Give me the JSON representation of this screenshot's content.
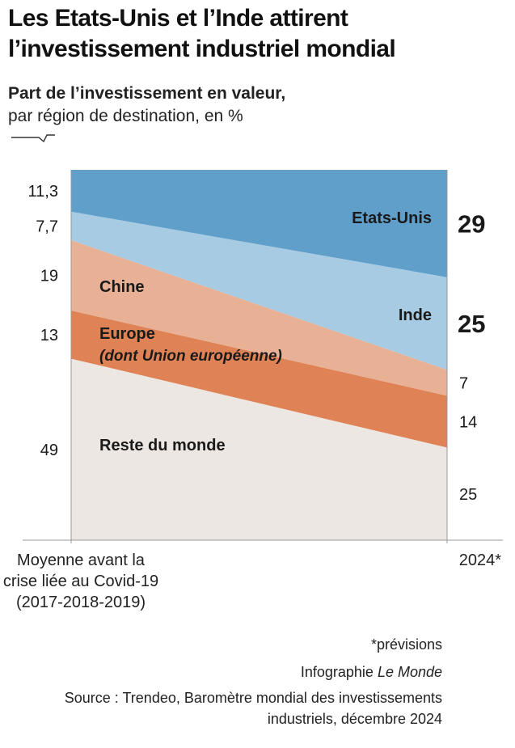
{
  "title": "Les Etats-Unis et l’Inde attirent l’investissement industriel mondial",
  "subtitle_bold": "Part de l’investissement en valeur,",
  "subtitle_regular": "par région de destination, en %",
  "notes": {
    "footnote": "*prévisions",
    "credit_prefix": "Infographie ",
    "credit_source": "Le Monde",
    "source": "Source : Trendeo, Baromètre mondial des investissements industriels, décembre 2024"
  },
  "colors": {
    "etats_unis": "#5f9fca",
    "inde": "#a6cbe2",
    "chine": "#e8b196",
    "europe": "#df8357",
    "reste": "#ece7e2",
    "line": "#9a9a9a",
    "text": "#1a1a1a"
  },
  "chart_data": {
    "type": "area",
    "stacked": true,
    "categories": [
      "Moyenne avant la crise liée au Covid-19 (2017-2018-2019)",
      "2024*"
    ],
    "series": [
      {
        "name": "Reste du monde",
        "values": [
          49,
          25
        ],
        "value_labels": [
          "49",
          "25"
        ],
        "bold_end_label": false
      },
      {
        "name": "Europe",
        "name_detail": "(dont Union européenne)",
        "values": [
          13,
          14
        ],
        "value_labels": [
          "13",
          "14"
        ],
        "bold_end_label": false
      },
      {
        "name": "Chine",
        "values": [
          19,
          7
        ],
        "value_labels": [
          "19",
          "7"
        ],
        "bold_end_label": false
      },
      {
        "name": "Inde",
        "values": [
          7.7,
          25
        ],
        "value_labels": [
          "7,7",
          "25"
        ],
        "bold_end_label": true
      },
      {
        "name": "Etats-Unis",
        "values": [
          11.3,
          29
        ],
        "value_labels": [
          "11,3",
          "29"
        ],
        "bold_end_label": true
      }
    ],
    "ylim": [
      0,
      100
    ],
    "grid": false,
    "legend": "inline"
  }
}
